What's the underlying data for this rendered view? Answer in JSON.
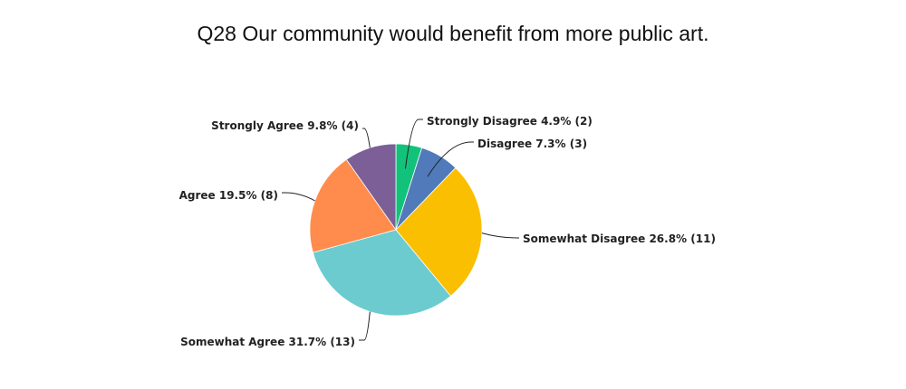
{
  "chart_data": {
    "type": "pie",
    "title": "Q28 Our community would benefit from more public art.",
    "slices": [
      {
        "name": "Strongly Disagree",
        "value": 2,
        "percent": "4.9%",
        "color": "#13c27a",
        "label": "Strongly Disagree 4.9% (2)"
      },
      {
        "name": "Disagree",
        "value": 3,
        "percent": "7.3%",
        "color": "#507ab9",
        "label": "Disagree 7.3% (3)"
      },
      {
        "name": "Somewhat Disagree",
        "value": 11,
        "percent": "26.8%",
        "color": "#f9bf00",
        "label": "Somewhat Disagree 26.8% (11)"
      },
      {
        "name": "Somewhat Agree",
        "value": 13,
        "percent": "31.7%",
        "color": "#6ccbcf",
        "label": "Somewhat Agree 31.7% (13)"
      },
      {
        "name": "Agree",
        "value": 8,
        "percent": "19.5%",
        "color": "#ff8c4c",
        "label": "Agree 19.5% (8)"
      },
      {
        "name": "Strongly Agree",
        "value": 4,
        "percent": "9.8%",
        "color": "#7b5f96",
        "label": "Strongly Agree 9.8% (4)"
      }
    ],
    "legend": "none"
  }
}
